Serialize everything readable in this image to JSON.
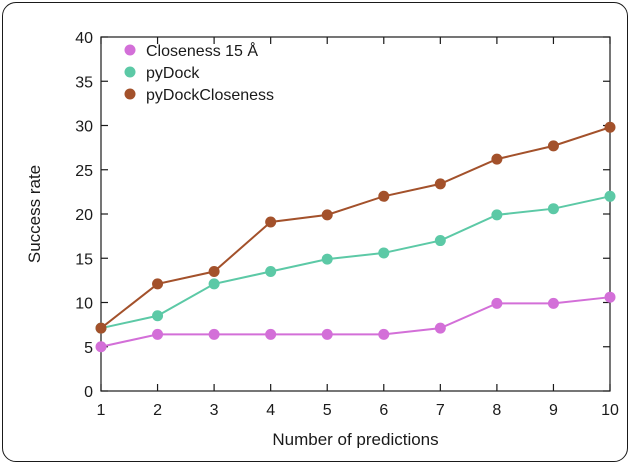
{
  "chart_data": {
    "type": "line",
    "title": "",
    "xlabel": "Number of predictions",
    "ylabel": "Success rate",
    "x": [
      1,
      2,
      3,
      4,
      5,
      6,
      7,
      8,
      9,
      10
    ],
    "xlim": [
      1,
      10
    ],
    "ylim": [
      0,
      40
    ],
    "xticks": [
      "1",
      "2",
      "3",
      "4",
      "5",
      "6",
      "7",
      "8",
      "9",
      "10"
    ],
    "yticks": [
      "0",
      "5",
      "10",
      "15",
      "20",
      "25",
      "30",
      "35",
      "40"
    ],
    "grid": false,
    "legend_position": "top-left",
    "series": [
      {
        "name": "Closeness 15 Å",
        "color": "#d36fd8",
        "values": [
          5.0,
          6.4,
          6.4,
          6.4,
          6.4,
          6.4,
          7.1,
          9.9,
          9.9,
          10.6
        ]
      },
      {
        "name": "pyDock",
        "color": "#5cc9a6",
        "values": [
          7.1,
          8.5,
          12.1,
          13.5,
          14.9,
          15.6,
          17.0,
          19.9,
          20.6,
          22.0
        ]
      },
      {
        "name": "pyDockCloseness",
        "color": "#a3512b",
        "values": [
          7.1,
          12.1,
          13.5,
          19.1,
          19.9,
          22.0,
          23.4,
          26.2,
          27.7,
          29.8
        ]
      }
    ]
  }
}
